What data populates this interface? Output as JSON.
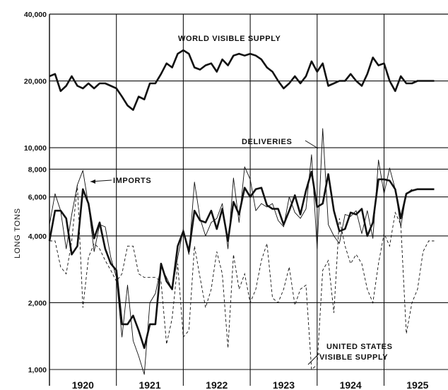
{
  "chart_data": {
    "type": "line",
    "title": "",
    "ylabel": "LONG TONS",
    "xlabel": "",
    "y_scale": "log",
    "ylim": [
      1000,
      40000
    ],
    "xlim": [
      1920.0,
      1926.0
    ],
    "y_ticks": [
      {
        "value": 1000,
        "label": "1,000"
      },
      {
        "value": 2000,
        "label": "2,000"
      },
      {
        "value": 4000,
        "label": "4,000"
      },
      {
        "value": 6000,
        "label": "6,000"
      },
      {
        "value": 8000,
        "label": "8,000"
      },
      {
        "value": 10000,
        "label": "10,000"
      },
      {
        "value": 20000,
        "label": "20,000"
      },
      {
        "value": 40000,
        "label": "40,000"
      }
    ],
    "x_ticks": [
      {
        "value": 1920.5,
        "label": "1920"
      },
      {
        "value": 1921.5,
        "label": "1921"
      },
      {
        "value": 1922.5,
        "label": "1922"
      },
      {
        "value": 1923.5,
        "label": "1923"
      },
      {
        "value": 1924.5,
        "label": "1924"
      },
      {
        "value": 1925.5,
        "label": "1925"
      }
    ],
    "grid": true,
    "series": [
      {
        "name": "WORLD VISIBLE SUPPLY",
        "style": "thick",
        "x": [
          1920.0,
          1920.083,
          1920.167,
          1920.25,
          1920.333,
          1920.417,
          1920.5,
          1920.583,
          1920.667,
          1920.75,
          1920.833,
          1920.917,
          1921.0,
          1921.083,
          1921.167,
          1921.25,
          1921.333,
          1921.417,
          1921.5,
          1921.583,
          1921.667,
          1921.75,
          1921.833,
          1921.917,
          1922.0,
          1922.083,
          1922.167,
          1922.25,
          1922.333,
          1922.417,
          1922.5,
          1922.583,
          1922.667,
          1922.75,
          1922.833,
          1922.917,
          1923.0,
          1923.083,
          1923.167,
          1923.25,
          1923.333,
          1923.417,
          1923.5,
          1923.583,
          1923.667,
          1923.75,
          1923.833,
          1923.917,
          1924.0,
          1924.083,
          1924.167,
          1924.25,
          1924.333,
          1924.417,
          1924.5,
          1924.583,
          1924.667,
          1924.75,
          1924.833,
          1924.917,
          1925.0,
          1925.083,
          1925.167,
          1925.25,
          1925.333,
          1925.417,
          1925.5,
          1925.583,
          1925.667,
          1925.75
        ],
        "values": [
          21000,
          21500,
          18000,
          19000,
          21000,
          19000,
          18500,
          19500,
          18500,
          19500,
          19500,
          19000,
          18500,
          17000,
          15500,
          14800,
          17000,
          16500,
          19500,
          19500,
          21500,
          24000,
          23000,
          26500,
          27500,
          26500,
          23000,
          22500,
          23500,
          24000,
          22000,
          25000,
          23500,
          26000,
          26500,
          26000,
          26500,
          26000,
          25000,
          23000,
          22000,
          20000,
          18500,
          19500,
          21000,
          19500,
          21000,
          24500,
          22000,
          24000,
          19000,
          19500,
          20000,
          20000,
          21500,
          20000,
          19000,
          21500,
          25500,
          23500,
          24000,
          20000,
          18000,
          21000,
          19500,
          19500,
          20000,
          20000,
          20000,
          20000
        ]
      },
      {
        "name": "DELIVERIES",
        "style": "thick",
        "x": [
          1920.0,
          1920.083,
          1920.167,
          1920.25,
          1920.333,
          1920.417,
          1920.5,
          1920.583,
          1920.667,
          1920.75,
          1920.833,
          1920.917,
          1921.0,
          1921.083,
          1921.167,
          1921.25,
          1921.333,
          1921.417,
          1921.5,
          1921.583,
          1921.667,
          1921.75,
          1921.833,
          1921.917,
          1922.0,
          1922.083,
          1922.167,
          1922.25,
          1922.333,
          1922.417,
          1922.5,
          1922.583,
          1922.667,
          1922.75,
          1922.833,
          1922.917,
          1923.0,
          1923.083,
          1923.167,
          1923.25,
          1923.333,
          1923.417,
          1923.5,
          1923.583,
          1923.667,
          1923.75,
          1923.833,
          1923.917,
          1924.0,
          1924.083,
          1924.167,
          1924.25,
          1924.333,
          1924.417,
          1924.5,
          1924.583,
          1924.667,
          1924.75,
          1924.833,
          1924.917,
          1925.0,
          1925.083,
          1925.167,
          1925.25,
          1925.333,
          1925.417,
          1925.5,
          1925.583,
          1925.667,
          1925.75
        ],
        "values": [
          3800,
          5200,
          5200,
          4800,
          3300,
          3600,
          6500,
          5600,
          3900,
          4600,
          3500,
          3000,
          2800,
          1600,
          1600,
          1750,
          1500,
          1250,
          1600,
          1600,
          3000,
          2500,
          2300,
          3600,
          4200,
          3400,
          5200,
          4700,
          4600,
          5200,
          4300,
          5300,
          3800,
          5700,
          5000,
          6600,
          6000,
          6500,
          6600,
          5500,
          5300,
          5300,
          4500,
          5200,
          6100,
          5000,
          6400,
          7800,
          5400,
          5600,
          7600,
          5200,
          4200,
          4300,
          5100,
          5000,
          5300,
          4000,
          4600,
          7200,
          7200,
          7100,
          6500,
          4800,
          6200,
          6400,
          6500,
          6500,
          6500,
          6500
        ]
      },
      {
        "name": "IMPORTS",
        "style": "thin",
        "x": [
          1920.0,
          1920.083,
          1920.167,
          1920.25,
          1920.333,
          1920.417,
          1920.5,
          1920.583,
          1920.667,
          1920.75,
          1920.833,
          1920.917,
          1921.0,
          1921.083,
          1921.167,
          1921.25,
          1921.333,
          1921.417,
          1921.5,
          1921.583,
          1921.667,
          1921.75,
          1921.833,
          1921.917,
          1922.0,
          1922.083,
          1922.167,
          1922.25,
          1922.333,
          1922.417,
          1922.5,
          1922.583,
          1922.667,
          1922.75,
          1922.833,
          1922.917,
          1923.0,
          1923.083,
          1923.167,
          1923.25,
          1923.333,
          1923.417,
          1923.5,
          1923.583,
          1923.667,
          1923.75,
          1923.833,
          1923.917,
          1924.0,
          1924.083,
          1924.167,
          1924.25,
          1924.333,
          1924.417,
          1924.5,
          1924.583,
          1924.667,
          1924.75,
          1924.833,
          1924.917,
          1925.0,
          1925.083,
          1925.167,
          1925.25,
          1925.333,
          1925.417
        ],
        "values": [
          4500,
          6200,
          5200,
          3500,
          5000,
          6800,
          7900,
          5500,
          3400,
          4500,
          4400,
          3200,
          2600,
          1400,
          2400,
          1350,
          1150,
          950,
          2000,
          2200,
          2900,
          2600,
          2300,
          3200,
          4300,
          3300,
          7000,
          4800,
          4000,
          4600,
          4800,
          5600,
          3500,
          7300,
          4600,
          8200,
          7200,
          5200,
          5600,
          5400,
          5600,
          4700,
          4400,
          6000,
          5100,
          4800,
          5300,
          9300,
          3500,
          12200,
          4500,
          4000,
          3700,
          5000,
          4900,
          5200,
          4100,
          5200,
          3900,
          8800,
          6200,
          8100,
          6500,
          4400,
          6200,
          6500
        ]
      },
      {
        "name": "UNITED STATES VISIBLE SUPPLY",
        "style": "dashed",
        "x": [
          1920.0,
          1920.083,
          1920.167,
          1920.25,
          1920.333,
          1920.417,
          1920.5,
          1920.583,
          1920.667,
          1920.75,
          1920.833,
          1920.917,
          1921.0,
          1921.083,
          1921.167,
          1921.25,
          1921.333,
          1921.417,
          1921.5,
          1921.583,
          1921.667,
          1921.75,
          1921.833,
          1921.917,
          1922.0,
          1922.083,
          1922.167,
          1922.25,
          1922.333,
          1922.417,
          1922.5,
          1922.583,
          1922.667,
          1922.75,
          1922.833,
          1922.917,
          1923.0,
          1923.083,
          1923.167,
          1923.25,
          1923.333,
          1923.417,
          1923.5,
          1923.583,
          1923.667,
          1923.75,
          1923.833,
          1923.917,
          1924.0,
          1924.083,
          1924.167,
          1924.25,
          1924.333,
          1924.417,
          1924.5,
          1924.583,
          1924.667,
          1924.75,
          1924.833,
          1924.917,
          1925.0,
          1925.083,
          1925.167,
          1925.25,
          1925.333,
          1925.417,
          1925.5,
          1925.583,
          1925.667,
          1925.75
        ],
        "values": [
          3800,
          3800,
          2900,
          2700,
          3800,
          6800,
          1900,
          3200,
          3700,
          3500,
          3100,
          2800,
          2500,
          2700,
          3600,
          3600,
          2700,
          2600,
          2600,
          2600,
          2500,
          1300,
          1700,
          3000,
          1400,
          1500,
          3600,
          2600,
          1900,
          2300,
          3400,
          2700,
          1250,
          3300,
          2300,
          2700,
          2000,
          2300,
          3100,
          3700,
          2100,
          2000,
          2300,
          2900,
          1950,
          2300,
          2400,
          1000,
          1050,
          2800,
          3100,
          1800,
          4800,
          3600,
          3000,
          3300,
          3000,
          2300,
          2000,
          3000,
          4100,
          3600,
          5100,
          4500,
          1450,
          2000,
          2300,
          3400,
          3800,
          3800
        ]
      }
    ],
    "annotations": [
      {
        "text": "WORLD VISIBLE SUPPLY"
      },
      {
        "text": "DELIVERIES"
      },
      {
        "text": "IMPORTS"
      },
      {
        "text": "UNITED STATES"
      },
      {
        "text": "VISIBLE SUPPLY"
      }
    ]
  }
}
